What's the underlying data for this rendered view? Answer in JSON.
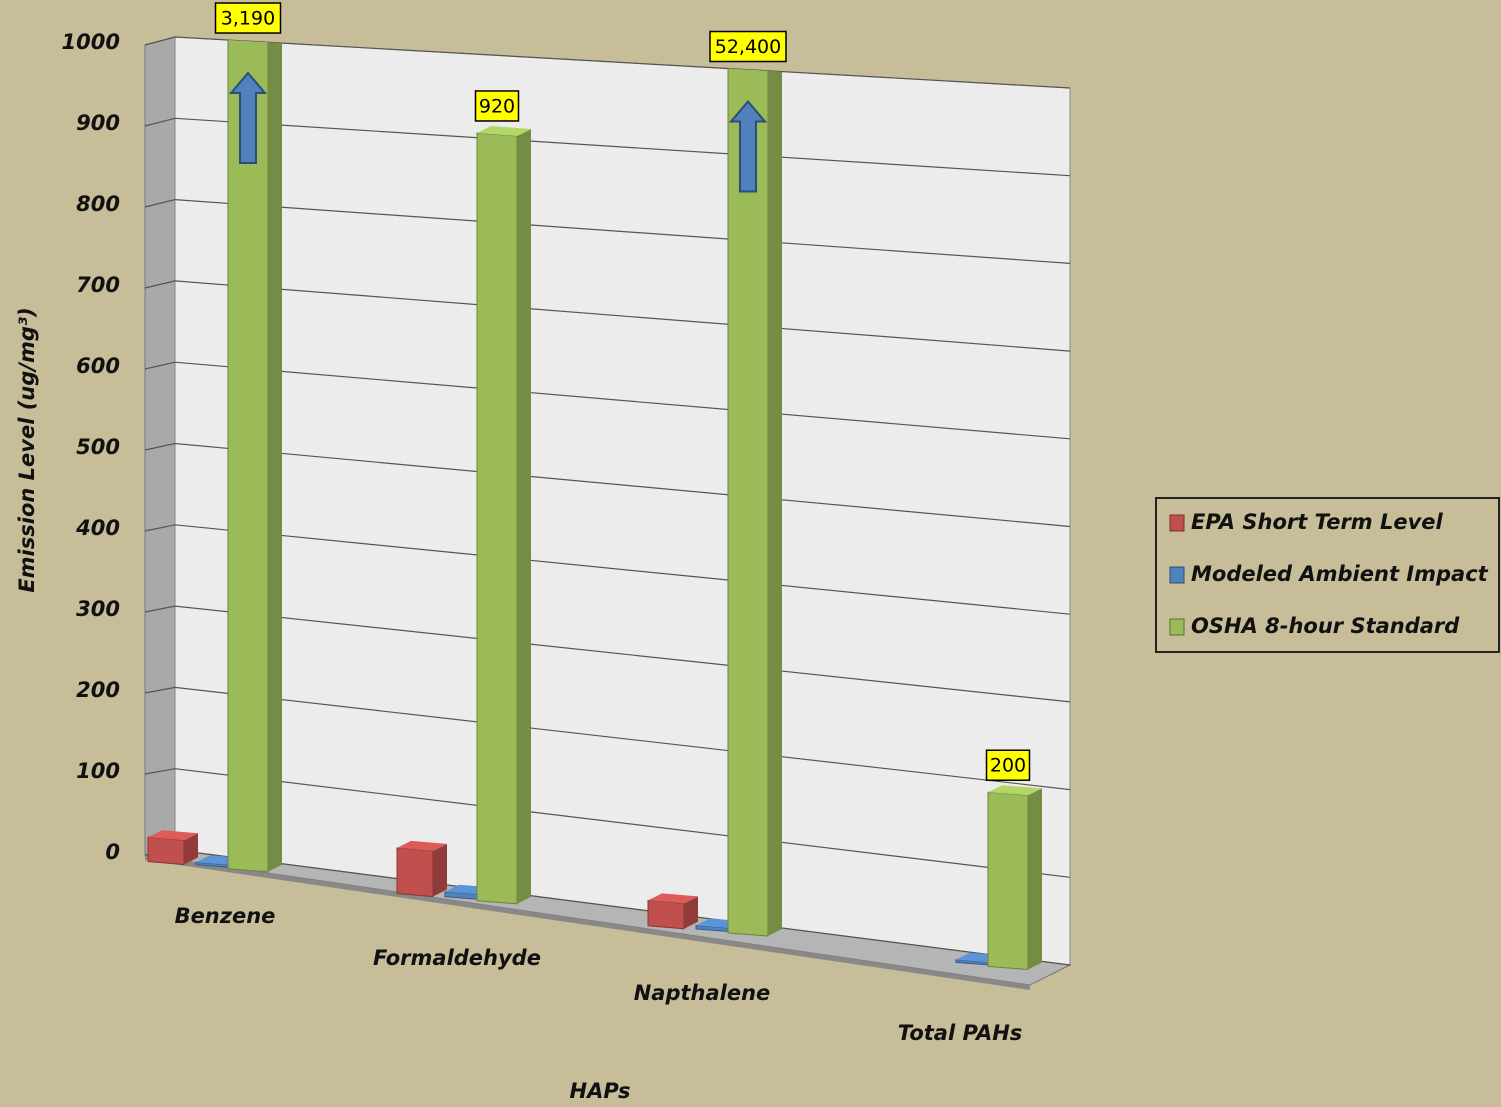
{
  "chart_data": {
    "type": "bar3d",
    "x_label": "HAPs",
    "y_label": "Emission Level (ug/mg³)",
    "categories": [
      "Benzene",
      "Formaldehyde",
      "Napthalene",
      "Total PAHs"
    ],
    "series": [
      {
        "name": "EPA Short Term Level",
        "color": "#c0504d",
        "values": [
          30,
          55,
          30,
          null
        ]
      },
      {
        "name": "Modeled Ambient Impact",
        "color": "#4f81bd",
        "values": [
          3,
          6,
          4,
          3
        ]
      },
      {
        "name": "OSHA 8-hour Standard",
        "color": "#9bbb59",
        "values": [
          3190,
          920,
          52400,
          200
        ],
        "value_labels": [
          "3,190",
          "920",
          "52,400",
          "200"
        ]
      }
    ],
    "ylim": [
      0,
      1000
    ],
    "yticks": [
      0,
      100,
      200,
      300,
      400,
      500,
      600,
      700,
      800,
      900,
      1000
    ],
    "grid": true,
    "legend": "right"
  }
}
